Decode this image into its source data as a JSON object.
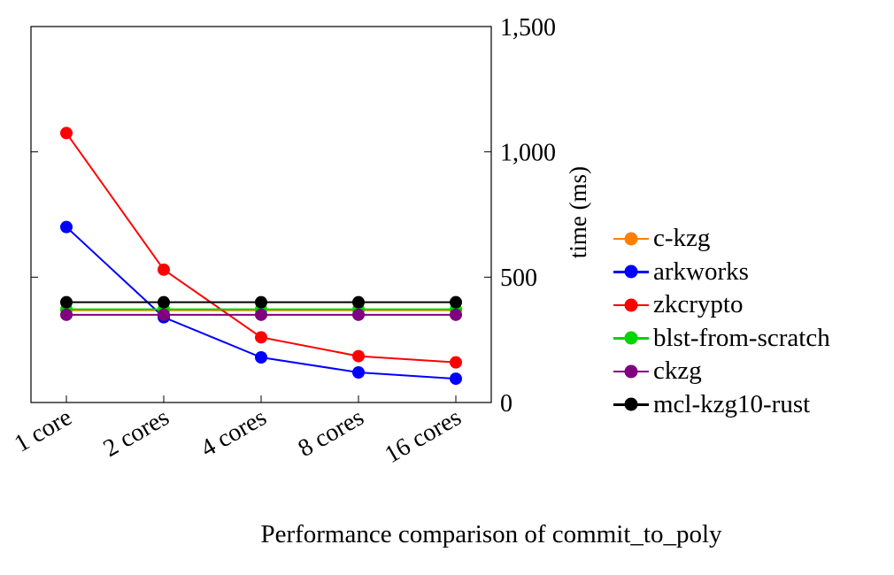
{
  "chart_data": {
    "type": "line",
    "title": "Performance comparison of commit_to_poly",
    "ylabel": "time (ms)",
    "xlabel": "",
    "categories": [
      "1 core",
      "2 cores",
      "4 cores",
      "8 cores",
      "16 cores"
    ],
    "ylim": [
      0,
      1500
    ],
    "yticks": [
      0,
      500,
      1000,
      1500
    ],
    "ytick_labels": [
      "0",
      "500",
      "1,000",
      "1,500"
    ],
    "grid": false,
    "marker": "filled-circle",
    "legend_position": "right-outside",
    "series": [
      {
        "name": "c-kzg",
        "color": "#FF8000",
        "values": [
          368,
          368,
          368,
          368,
          368
        ]
      },
      {
        "name": "arkworks",
        "color": "#0000FF",
        "values": [
          700,
          340,
          180,
          120,
          95
        ]
      },
      {
        "name": "zkcrypto",
        "color": "#FF0000",
        "values": [
          1075,
          530,
          260,
          185,
          160
        ]
      },
      {
        "name": "blst-from-scratch",
        "color": "#00D500",
        "values": [
          372,
          372,
          372,
          372,
          372
        ]
      },
      {
        "name": "ckzg",
        "color": "#800080",
        "values": [
          350,
          350,
          350,
          350,
          350
        ]
      },
      {
        "name": "mcl-kzg10-rust",
        "color": "#000000",
        "values": [
          400,
          400,
          400,
          400,
          400
        ]
      }
    ]
  }
}
